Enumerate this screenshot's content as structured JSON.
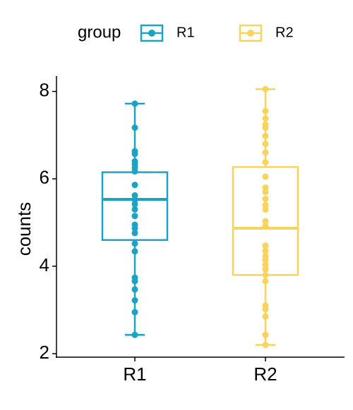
{
  "chart_data": {
    "type": "box",
    "y_label": "counts",
    "legend_title": "group",
    "categories": [
      "R1",
      "R2"
    ],
    "ylim": [
      1.92,
      8.35
    ],
    "yticks": [
      2,
      4,
      6,
      8
    ],
    "series": [
      {
        "name": "R1",
        "color": "#1ba3c6",
        "low": 2.43,
        "q1": 4.6,
        "median": 5.53,
        "q3": 6.15,
        "high": 7.72,
        "points": [
          7.72,
          7.17,
          6.63,
          6.57,
          6.4,
          6.33,
          6.25,
          6.17,
          5.86,
          5.62,
          5.52,
          5.42,
          5.3,
          5.15,
          4.95,
          4.87,
          4.76,
          4.52,
          4.34,
          3.74,
          3.66,
          3.47,
          3.22,
          2.95,
          2.43
        ]
      },
      {
        "name": "R2",
        "color": "#f8d35e",
        "low": 2.2,
        "q1": 3.8,
        "median": 4.87,
        "q3": 6.27,
        "high": 8.05,
        "points": [
          8.05,
          7.55,
          7.38,
          7.24,
          7.17,
          6.98,
          6.8,
          6.6,
          6.38,
          6.05,
          5.8,
          5.7,
          5.54,
          5.4,
          5.3,
          5.03,
          4.92,
          4.47,
          4.35,
          4.23,
          4.14,
          4.03,
          3.93,
          3.8,
          3.66,
          3.1,
          3.02,
          2.85,
          2.43,
          2.2
        ]
      }
    ]
  }
}
